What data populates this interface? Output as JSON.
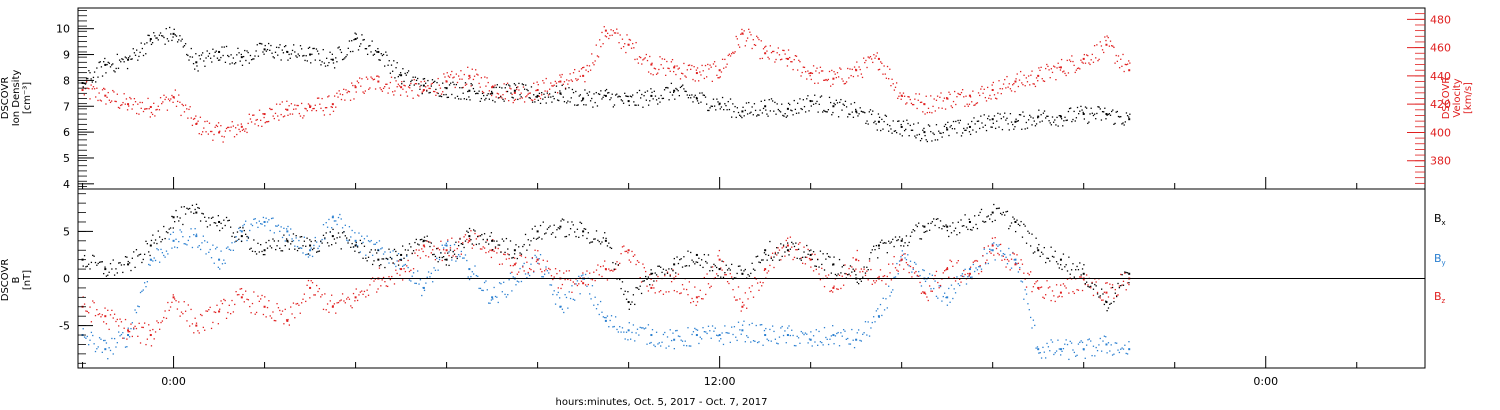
{
  "chart_data": [
    {
      "type": "scatter",
      "panel": "top",
      "title": "",
      "ylabel": [
        "DSCOVR",
        "Ion Density",
        "[cm⁻³]"
      ],
      "ylim": [
        3.8,
        10.8
      ],
      "yticks": [
        "4",
        "5",
        "6",
        "7",
        "8",
        "9",
        "10"
      ],
      "y2label": [
        "DSCOVR",
        "Velocity",
        "[km/s]"
      ],
      "y2lim": [
        360,
        488
      ],
      "y2ticks": [
        "380",
        "400",
        "420",
        "440",
        "460",
        "480"
      ],
      "series": [
        {
          "color": "#000000",
          "axis": "left",
          "x": [
            -2.0,
            -1.5,
            -1.0,
            -0.5,
            0.0,
            0.5,
            1.0,
            1.5,
            2.0,
            2.5,
            3.0,
            3.5,
            4.0,
            4.5,
            5.0,
            5.5,
            6.0,
            6.5,
            7.0,
            7.5,
            8.0,
            8.5,
            9.0,
            9.5,
            10.0,
            10.5,
            11.0,
            11.5,
            12.0,
            12.5,
            13.0,
            13.5,
            14.0,
            14.5,
            15.0,
            15.5,
            16.0,
            16.5,
            17.0,
            17.5,
            18.0,
            18.5,
            19.0,
            19.5,
            20.0,
            20.5,
            21.0
          ],
          "values": [
            7.9,
            8.6,
            8.8,
            9.6,
            9.8,
            8.7,
            9.1,
            8.9,
            9.2,
            9.1,
            9.0,
            8.8,
            9.6,
            9.1,
            8.2,
            7.8,
            7.7,
            7.6,
            7.5,
            7.6,
            7.4,
            7.5,
            7.3,
            7.4,
            7.2,
            7.4,
            7.6,
            7.3,
            7.1,
            6.8,
            7.0,
            6.9,
            7.2,
            7.0,
            6.8,
            6.4,
            6.2,
            6.0,
            6.1,
            6.2,
            6.5,
            6.4,
            6.6,
            6.6,
            6.7,
            6.7,
            6.5
          ]
        },
        {
          "color": "#e02020",
          "axis": "right",
          "x": [
            -2.0,
            -1.5,
            -1.0,
            -0.5,
            0.0,
            0.5,
            1.0,
            1.5,
            2.0,
            2.5,
            3.0,
            3.5,
            4.0,
            4.5,
            5.0,
            5.5,
            6.0,
            6.5,
            7.0,
            7.5,
            8.0,
            8.5,
            9.0,
            9.5,
            10.0,
            10.5,
            11.0,
            11.5,
            12.0,
            12.5,
            13.0,
            13.5,
            14.0,
            14.5,
            15.0,
            15.5,
            16.0,
            16.5,
            17.0,
            17.5,
            18.0,
            18.5,
            19.0,
            19.5,
            20.0,
            20.5,
            21.0
          ],
          "values": [
            430,
            426,
            420,
            418,
            425,
            406,
            400,
            404,
            413,
            416,
            418,
            420,
            432,
            436,
            432,
            430,
            436,
            440,
            432,
            428,
            430,
            436,
            440,
            472,
            462,
            448,
            446,
            442,
            444,
            470,
            456,
            452,
            442,
            438,
            444,
            452,
            426,
            420,
            424,
            426,
            430,
            436,
            440,
            446,
            452,
            462,
            444
          ]
        }
      ]
    },
    {
      "type": "scatter",
      "panel": "bottom",
      "title": "",
      "ylabel": [
        "DSCOVR",
        "B",
        "[nT]"
      ],
      "ylim": [
        -9.5,
        9.5
      ],
      "yticks": [
        "-5",
        "0",
        "5"
      ],
      "xlabel": "hours:minutes, Oct.  5, 2017 - Oct.  7, 2017",
      "xlim": [
        -2.1,
        27.5
      ],
      "xticks": [
        {
          "x": 0,
          "label": "0:00"
        },
        {
          "x": 12,
          "label": "12:00"
        },
        {
          "x": 24,
          "label": "0:00"
        }
      ],
      "legend": [
        "Bx",
        "By",
        "Bz"
      ],
      "legend_placement": "right",
      "series": [
        {
          "name": "Bx",
          "color": "#000000",
          "x": [
            -2.0,
            -1.5,
            -1.0,
            -0.5,
            0.0,
            0.5,
            1.0,
            1.5,
            2.0,
            2.5,
            3.0,
            3.5,
            4.0,
            4.5,
            5.0,
            5.5,
            6.0,
            6.5,
            7.0,
            7.5,
            8.0,
            8.5,
            9.0,
            9.5,
            10.0,
            10.5,
            11.0,
            11.5,
            12.0,
            12.5,
            13.0,
            13.5,
            14.0,
            14.5,
            15.0,
            15.5,
            16.0,
            16.5,
            17.0,
            17.5,
            18.0,
            18.5,
            19.0,
            19.5,
            20.0,
            20.5,
            21.0
          ],
          "values": [
            2.0,
            1.0,
            1.5,
            3.5,
            6.5,
            7.0,
            6.0,
            4.5,
            3.0,
            4.0,
            3.5,
            4.5,
            3.5,
            2.0,
            2.5,
            4.0,
            2.0,
            4.5,
            4.0,
            3.0,
            5.0,
            5.5,
            5.0,
            4.0,
            -2.5,
            0.5,
            1.5,
            2.5,
            1.0,
            0.5,
            3.0,
            3.0,
            2.5,
            1.5,
            0.0,
            3.5,
            4.0,
            5.5,
            5.5,
            6.0,
            7.0,
            6.0,
            3.0,
            2.0,
            0.5,
            -2.5,
            0.5
          ]
        },
        {
          "name": "By",
          "color": "#2a7fd0",
          "x": [
            -2.0,
            -1.5,
            -1.0,
            -0.5,
            0.0,
            0.5,
            1.0,
            1.5,
            2.0,
            2.5,
            3.0,
            3.5,
            4.0,
            4.5,
            5.0,
            5.5,
            6.0,
            6.5,
            7.0,
            7.5,
            8.0,
            8.5,
            9.0,
            9.5,
            10.0,
            10.5,
            11.0,
            11.5,
            12.0,
            12.5,
            13.0,
            13.5,
            14.0,
            14.5,
            15.0,
            15.5,
            16.0,
            16.5,
            17.0,
            17.5,
            18.0,
            18.5,
            19.0,
            19.5,
            20.0,
            20.5,
            21.0
          ],
          "values": [
            -6.0,
            -7.5,
            -6.0,
            2.0,
            4.0,
            4.5,
            2.0,
            5.0,
            6.0,
            5.0,
            3.0,
            6.5,
            4.0,
            3.0,
            2.0,
            -1.0,
            3.5,
            1.0,
            -2.0,
            0.0,
            2.0,
            -3.0,
            0.0,
            -4.5,
            -5.5,
            -6.0,
            -6.5,
            -6.0,
            -6.0,
            -5.5,
            -6.0,
            -6.0,
            -6.5,
            -6.0,
            -6.5,
            -4.0,
            2.0,
            0.0,
            -2.0,
            1.0,
            3.0,
            2.0,
            -7.5,
            -7.5,
            -7.5,
            -7.0,
            -7.5
          ]
        },
        {
          "name": "Bz",
          "color": "#e02020",
          "x": [
            -2.0,
            -1.5,
            -1.0,
            -0.5,
            0.0,
            0.5,
            1.0,
            1.5,
            2.0,
            2.5,
            3.0,
            3.5,
            4.0,
            4.5,
            5.0,
            5.5,
            6.0,
            6.5,
            7.0,
            7.5,
            8.0,
            8.5,
            9.0,
            9.5,
            10.0,
            10.5,
            11.0,
            11.5,
            12.0,
            12.5,
            13.0,
            13.5,
            14.0,
            14.5,
            15.0,
            15.5,
            16.0,
            16.5,
            17.0,
            17.5,
            18.0,
            18.5,
            19.0,
            19.5,
            20.0,
            20.5,
            21.0
          ],
          "values": [
            -3.0,
            -4.0,
            -5.5,
            -6.0,
            -2.0,
            -5.0,
            -3.5,
            -2.0,
            -3.0,
            -4.5,
            -1.0,
            -3.0,
            -2.0,
            0.0,
            1.0,
            3.5,
            3.0,
            4.0,
            3.0,
            1.5,
            2.0,
            0.0,
            -0.5,
            1.0,
            3.0,
            -1.0,
            0.0,
            -2.0,
            2.0,
            -3.0,
            1.0,
            3.5,
            2.0,
            -1.0,
            2.0,
            0.0,
            2.0,
            -1.5,
            1.0,
            0.5,
            3.5,
            1.5,
            -1.0,
            -1.5,
            0.0,
            -1.5,
            0.0
          ]
        }
      ]
    }
  ]
}
